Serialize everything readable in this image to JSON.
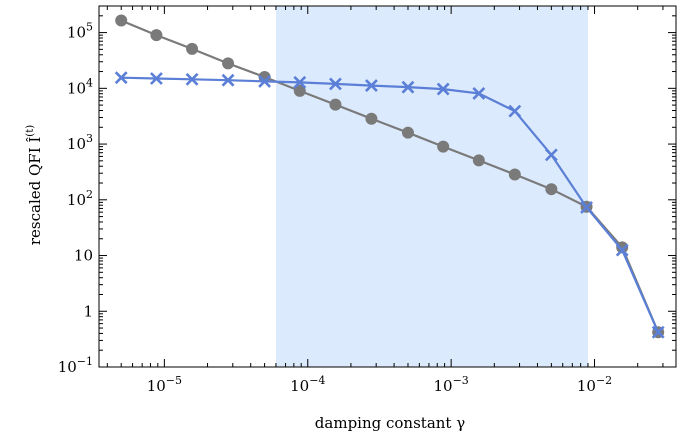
{
  "chart_data": {
    "type": "line",
    "xlabel": "damping constant  γ",
    "ylabel": "rescaled QFI Î(t)",
    "x_scale": "log",
    "y_scale": "log",
    "xlim": [
      3.5e-06,
      0.037
    ],
    "ylim": [
      0.1,
      300000
    ],
    "grid": false,
    "shaded_region": {
      "x_from": 6e-05,
      "x_to": 0.009,
      "color": "#dbeafc"
    },
    "x_ticks": [
      {
        "value": 1e-05,
        "label": "10",
        "exp": "−5"
      },
      {
        "value": 0.0001,
        "label": "10",
        "exp": "−4"
      },
      {
        "value": 0.001,
        "label": "10",
        "exp": "−3"
      },
      {
        "value": 0.01,
        "label": "10",
        "exp": "−2"
      }
    ],
    "y_ticks": [
      {
        "value": 0.1,
        "label": "10",
        "exp": "−1"
      },
      {
        "value": 1,
        "label": "1",
        "exp": ""
      },
      {
        "value": 10,
        "label": "10",
        "exp": ""
      },
      {
        "value": 100,
        "label": "10",
        "exp": "2"
      },
      {
        "value": 1000,
        "label": "10",
        "exp": "3"
      },
      {
        "value": 10000,
        "label": "10",
        "exp": "4"
      },
      {
        "value": 100000,
        "label": "10",
        "exp": "5"
      }
    ],
    "x": [
      5e-06,
      8.8e-06,
      1.56e-05,
      2.78e-05,
      5e-05,
      8.8e-05,
      0.000156,
      0.000278,
      0.0005,
      0.00088,
      0.00156,
      0.00278,
      0.005,
      0.0088,
      0.0156,
      0.0278
    ],
    "series": [
      {
        "marker": "circle",
        "color": "#7a7a7a",
        "values": [
          165000,
          90000,
          51000,
          28000,
          16000,
          9000,
          5100,
          2850,
          1600,
          900,
          510,
          285,
          155,
          75,
          14,
          0.42
        ]
      },
      {
        "marker": "cross",
        "color": "#5b7fd6",
        "values": [
          15500,
          15000,
          14500,
          14000,
          13300,
          12800,
          12000,
          11200,
          10500,
          9700,
          8100,
          3900,
          640,
          73,
          12.5,
          0.42
        ]
      }
    ]
  }
}
